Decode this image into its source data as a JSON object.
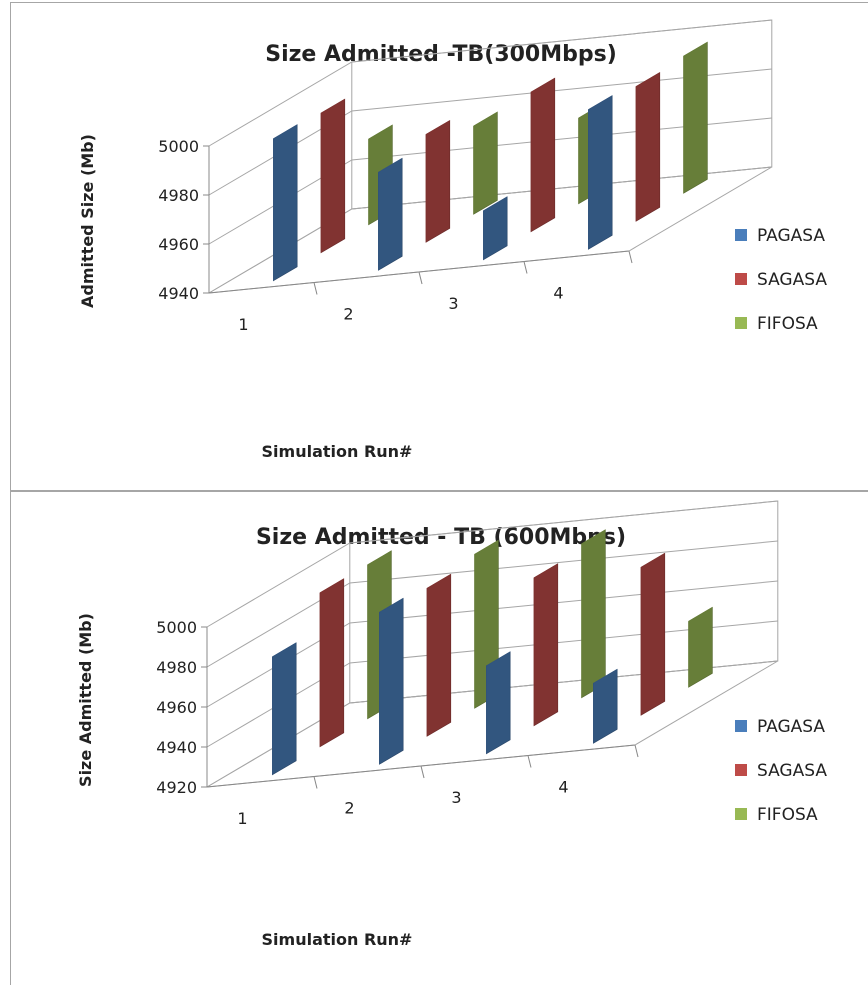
{
  "chart_data": [
    {
      "type": "bar",
      "title": "Size Admitted -TB(300Mbps)",
      "xlabel": "Simulation Run#",
      "ylabel": "Admitted Size (Mb)",
      "categories": [
        "1",
        "2",
        "3",
        "4"
      ],
      "yticks": [
        4940,
        4960,
        4980,
        5000
      ],
      "ylim": [
        4940,
        5000
      ],
      "series": [
        {
          "name": "PAGASA",
          "values": [
            4998,
            4980,
            4960,
            4997
          ]
        },
        {
          "name": "SAGASA",
          "values": [
            4997,
            4984,
            4997,
            4995
          ]
        },
        {
          "name": "FIFOSA",
          "values": [
            4975,
            4976,
            4975,
            4996
          ]
        }
      ],
      "legend": "right",
      "colors": {
        "PAGASA": "#4a7ebb",
        "SAGASA": "#be4b48",
        "FIFOSA": "#98b954"
      }
    },
    {
      "type": "bar",
      "title": "Size Admitted - TB (600Mbps)",
      "xlabel": "Simulation Run#",
      "ylabel": "Size Admitted (Mb)",
      "categories": [
        "1",
        "2",
        "3",
        "4"
      ],
      "yticks": [
        4920,
        4940,
        4960,
        4980,
        5000
      ],
      "ylim": [
        4920,
        5000
      ],
      "series": [
        {
          "name": "PAGASA",
          "values": [
            4979,
            4996,
            4964,
            4950
          ]
        },
        {
          "name": "SAGASA",
          "values": [
            4997,
            4994,
            4994,
            4994
          ]
        },
        {
          "name": "FIFOSA",
          "values": [
            4997,
            4997,
            4997,
            4953
          ]
        }
      ],
      "legend": "right",
      "colors": {
        "PAGASA": "#4a7ebb",
        "SAGASA": "#be4b48",
        "FIFOSA": "#98b954"
      }
    }
  ]
}
